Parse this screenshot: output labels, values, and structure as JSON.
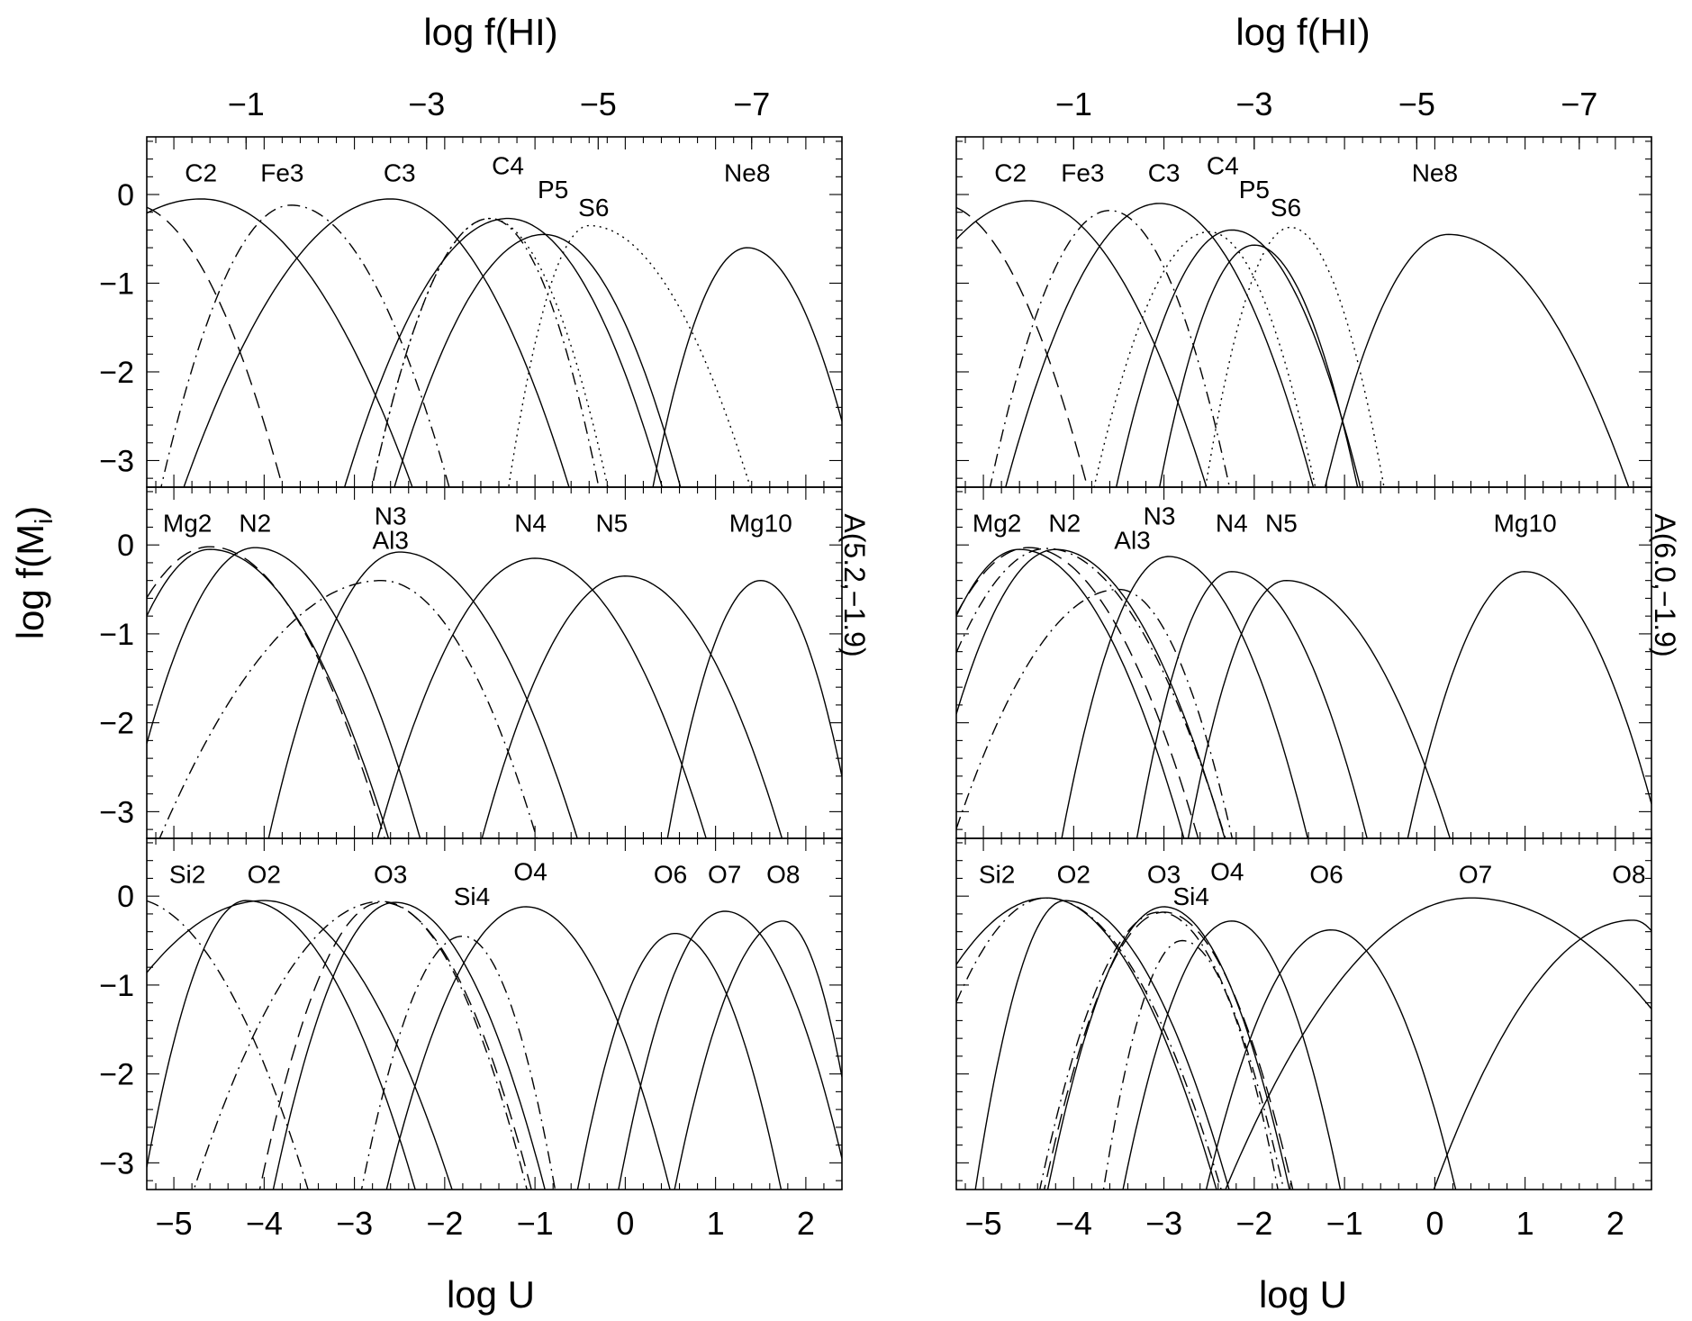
{
  "chart_data": [
    {
      "type": "line",
      "column": "left",
      "top_axis_label": "log f(HI)",
      "top_ticks": [
        "−1",
        "−3",
        "−5",
        "−7"
      ],
      "top_tick_logU": [
        -4.2,
        -2.2,
        -0.3,
        1.4
      ],
      "bottom_axis_label": "log U",
      "y_axis_label": "log f(M",
      "y_axis_label_sub": "i",
      "y_axis_label_end": ")",
      "right_label": "A(5.2,−1.9)",
      "xlim": [
        -5.3,
        2.4
      ],
      "ylim": [
        -3.3,
        0.65
      ],
      "x_ticks": [
        -5,
        -4,
        -3,
        -2,
        -1,
        0,
        1,
        2
      ],
      "x_tick_labels": [
        "−5",
        "−4",
        "−3",
        "−2",
        "−1",
        "0",
        "1",
        "2"
      ],
      "y_ticks": [
        0,
        -1,
        -2,
        -3
      ],
      "y_tick_labels": [
        "0",
        "−1",
        "−2",
        "−3"
      ],
      "panels": [
        {
          "labels": [
            {
              "text": "C2",
              "x": -4.7,
              "y": 0.25
            },
            {
              "text": "Fe3",
              "x": -3.8,
              "y": 0.25
            },
            {
              "text": "C3",
              "x": -2.5,
              "y": 0.25
            },
            {
              "text": "C4",
              "x": -1.3,
              "y": 0.33
            },
            {
              "text": "P5",
              "x": -0.8,
              "y": 0.06
            },
            {
              "text": "S6",
              "x": -0.35,
              "y": -0.14
            },
            {
              "text": "Ne8",
              "x": 1.35,
              "y": 0.25
            }
          ],
          "series": [
            {
              "name": "C2",
              "style": "solid",
              "peak_x": -4.7,
              "peak_y": -0.05,
              "w_left": 2.6,
              "w_right": 2.25
            },
            {
              "name": "Fe3",
              "style": "dashdot",
              "peak_x": -3.7,
              "peak_y": -0.12,
              "w_left": 1.4,
              "w_right": 1.7
            },
            {
              "name": "C3",
              "style": "solid",
              "peak_x": -2.6,
              "peak_y": -0.05,
              "w_left": 2.2,
              "w_right": 1.9
            },
            {
              "name": "C4",
              "style": "solid",
              "peak_x": -1.3,
              "peak_y": -0.27,
              "w_left": 1.8,
              "w_right": 1.7
            },
            {
              "name": "P5",
              "style": "solid",
              "peak_x": -0.9,
              "peak_y": -0.45,
              "w_left": 1.7,
              "w_right": 1.55
            },
            {
              "name": "S6",
              "style": "dotted",
              "peak_x": -0.4,
              "peak_y": -0.35,
              "w_left": 0.9,
              "w_right": 1.8
            },
            {
              "name": "Ne8",
              "style": "solid",
              "peak_x": 1.35,
              "peak_y": -0.6,
              "w_left": 1.1,
              "w_right": 1.3
            },
            {
              "name": "",
              "style": "dashdash",
              "peak_x": -5.5,
              "peak_y": -0.1,
              "w_left": 1.5,
              "w_right": 1.65
            },
            {
              "name": "",
              "style": "dotted",
              "peak_x": -1.5,
              "peak_y": -0.27,
              "w_left": 1.3,
              "w_right": 1.3
            },
            {
              "name": "",
              "style": "dashdot",
              "peak_x": -1.5,
              "peak_y": -0.27,
              "w_left": 1.3,
              "w_right": 1.2
            }
          ]
        },
        {
          "labels": [
            {
              "text": "Mg2",
              "x": -4.85,
              "y": 0.25
            },
            {
              "text": "N2",
              "x": -4.1,
              "y": 0.25
            },
            {
              "text": "N3",
              "x": -2.6,
              "y": 0.33
            },
            {
              "text": "Al3",
              "x": -2.6,
              "y": 0.06
            },
            {
              "text": "N4",
              "x": -1.05,
              "y": 0.25
            },
            {
              "text": "N5",
              "x": -0.15,
              "y": 0.25
            },
            {
              "text": "Mg10",
              "x": 1.5,
              "y": 0.25
            }
          ],
          "series": [
            {
              "name": "Mg2",
              "style": "solid",
              "peak_x": -4.6,
              "peak_y": -0.05,
              "w_left": 1.4,
              "w_right": 1.9
            },
            {
              "name": "N2",
              "style": "solid",
              "peak_x": -4.1,
              "peak_y": -0.03,
              "w_left": 1.4,
              "w_right": 1.75
            },
            {
              "name": "N3",
              "style": "solid",
              "peak_x": -2.5,
              "peak_y": -0.08,
              "w_left": 1.4,
              "w_right": 1.9
            },
            {
              "name": "Al3",
              "style": "dashdot",
              "peak_x": -2.7,
              "peak_y": -0.4,
              "w_left": 2.5,
              "w_right": 1.75
            },
            {
              "name": "N4",
              "style": "solid",
              "peak_x": -1.0,
              "peak_y": -0.15,
              "w_left": 1.7,
              "w_right": 1.85
            },
            {
              "name": "N5",
              "style": "solid",
              "peak_x": 0.0,
              "peak_y": -0.35,
              "w_left": 1.6,
              "w_right": 1.75
            },
            {
              "name": "Mg10",
              "style": "solid",
              "peak_x": 1.5,
              "peak_y": -0.4,
              "w_left": 1.05,
              "w_right": 1.05
            },
            {
              "name": "",
              "style": "dashdash",
              "peak_x": -4.6,
              "peak_y": -0.02,
              "w_left": 1.6,
              "w_right": 1.85
            }
          ]
        },
        {
          "labels": [
            {
              "text": "Si2",
              "x": -4.85,
              "y": 0.25
            },
            {
              "text": "O2",
              "x": -4.0,
              "y": 0.25
            },
            {
              "text": "O3",
              "x": -2.6,
              "y": 0.25
            },
            {
              "text": "Si4",
              "x": -1.7,
              "y": 0.0
            },
            {
              "text": "O4",
              "x": -1.05,
              "y": 0.28
            },
            {
              "text": "O6",
              "x": 0.5,
              "y": 0.25
            },
            {
              "text": "O7",
              "x": 1.1,
              "y": 0.25
            },
            {
              "text": "O8",
              "x": 1.75,
              "y": 0.25
            }
          ],
          "series": [
            {
              "name": "Si2",
              "style": "solid",
              "peak_x": -4.0,
              "peak_y": -0.05,
              "w_left": 2.5,
              "w_right": 2.0
            },
            {
              "name": "O2",
              "style": "solid",
              "peak_x": -4.2,
              "peak_y": -0.05,
              "w_left": 1.1,
              "w_right": 1.8
            },
            {
              "name": "O3",
              "style": "solid",
              "peak_x": -2.55,
              "peak_y": -0.07,
              "w_left": 1.3,
              "w_right": 1.6
            },
            {
              "name": "Si4",
              "style": "dashdot",
              "peak_x": -1.8,
              "peak_y": -0.45,
              "w_left": 1.15,
              "w_right": 1.05
            },
            {
              "name": "O4",
              "style": "solid",
              "peak_x": -1.1,
              "peak_y": -0.12,
              "w_left": 1.5,
              "w_right": 1.55
            },
            {
              "name": "O6",
              "style": "solid",
              "peak_x": 0.55,
              "peak_y": -0.42,
              "w_left": 1.1,
              "w_right": 1.2
            },
            {
              "name": "O7",
              "style": "solid",
              "peak_x": 1.1,
              "peak_y": -0.17,
              "w_left": 1.15,
              "w_right": 1.35
            },
            {
              "name": "O8",
              "style": "solid",
              "peak_x": 1.75,
              "peak_y": -0.28,
              "w_left": 1.2,
              "w_right": 0.85
            },
            {
              "name": "",
              "style": "dashdot",
              "peak_x": -5.5,
              "peak_y": -0.02,
              "w_left": 1.6,
              "w_right": 1.9
            },
            {
              "name": "",
              "style": "dashdot",
              "peak_x": -2.7,
              "peak_y": -0.06,
              "w_left": 2.0,
              "w_right": 1.55
            },
            {
              "name": "",
              "style": "dashdash",
              "peak_x": -2.7,
              "peak_y": -0.07,
              "w_left": 1.3,
              "w_right": 1.6
            }
          ]
        }
      ]
    },
    {
      "type": "line",
      "column": "right",
      "top_axis_label": "log f(HI)",
      "top_ticks": [
        "−1",
        "−3",
        "−5",
        "−7"
      ],
      "top_tick_logU": [
        -4.0,
        -2.0,
        -0.2,
        1.6
      ],
      "bottom_axis_label": "log U",
      "right_label": "A(6.0,−1.9)",
      "xlim": [
        -5.3,
        2.4
      ],
      "ylim": [
        -3.3,
        0.65
      ],
      "x_ticks": [
        -5,
        -4,
        -3,
        -2,
        -1,
        0,
        1,
        2
      ],
      "x_tick_labels": [
        "−5",
        "−4",
        "−3",
        "−2",
        "−1",
        "0",
        "1",
        "2"
      ],
      "y_ticks": [
        0,
        -1,
        -2,
        -3
      ],
      "panels": [
        {
          "labels": [
            {
              "text": "C2",
              "x": -4.7,
              "y": 0.25
            },
            {
              "text": "Fe3",
              "x": -3.9,
              "y": 0.25
            },
            {
              "text": "C3",
              "x": -3.0,
              "y": 0.25
            },
            {
              "text": "C4",
              "x": -2.35,
              "y": 0.33
            },
            {
              "text": "P5",
              "x": -2.0,
              "y": 0.06
            },
            {
              "text": "S6",
              "x": -1.65,
              "y": -0.14
            },
            {
              "text": "Ne8",
              "x": 0.0,
              "y": 0.25
            }
          ],
          "series": [
            {
              "name": "C2",
              "style": "solid",
              "peak_x": -4.5,
              "peak_y": -0.07,
              "w_left": 2.1,
              "w_right": 1.9
            },
            {
              "name": "Fe3",
              "style": "dashdot",
              "peak_x": -3.6,
              "peak_y": -0.18,
              "w_left": 1.3,
              "w_right": 1.3
            },
            {
              "name": "C3",
              "style": "solid",
              "peak_x": -3.05,
              "peak_y": -0.1,
              "w_left": 1.65,
              "w_right": 1.65
            },
            {
              "name": "C4",
              "style": "solid",
              "peak_x": -2.25,
              "peak_y": -0.4,
              "w_left": 1.3,
              "w_right": 1.45
            },
            {
              "name": "P5",
              "style": "solid",
              "peak_x": -2.0,
              "peak_y": -0.57,
              "w_left": 1.1,
              "w_right": 1.2
            },
            {
              "name": "S6",
              "style": "dotted",
              "peak_x": -1.6,
              "peak_y": -0.37,
              "w_left": 0.95,
              "w_right": 1.05
            },
            {
              "name": "Ne8",
              "style": "solid",
              "peak_x": 0.15,
              "peak_y": -0.45,
              "w_left": 1.4,
              "w_right": 2.05
            },
            {
              "name": "",
              "style": "dashdash",
              "peak_x": -5.5,
              "peak_y": -0.1,
              "w_left": 1.5,
              "w_right": 1.6
            },
            {
              "name": "",
              "style": "dotted",
              "peak_x": -2.5,
              "peak_y": -0.42,
              "w_left": 1.3,
              "w_right": 1.2
            }
          ]
        },
        {
          "labels": [
            {
              "text": "Mg2",
              "x": -4.85,
              "y": 0.25
            },
            {
              "text": "N2",
              "x": -4.1,
              "y": 0.25
            },
            {
              "text": "N3",
              "x": -3.05,
              "y": 0.33
            },
            {
              "text": "Al3",
              "x": -3.35,
              "y": 0.06
            },
            {
              "text": "N4",
              "x": -2.25,
              "y": 0.25
            },
            {
              "text": "N5",
              "x": -1.7,
              "y": 0.25
            },
            {
              "text": "Mg10",
              "x": 1.0,
              "y": 0.25
            }
          ],
          "series": [
            {
              "name": "Mg2",
              "style": "solid",
              "peak_x": -4.6,
              "peak_y": -0.05,
              "w_left": 1.4,
              "w_right": 1.75
            },
            {
              "name": "N2",
              "style": "solid",
              "peak_x": -4.2,
              "peak_y": -0.05,
              "w_left": 1.4,
              "w_right": 1.8
            },
            {
              "name": "N3",
              "style": "solid",
              "peak_x": -2.95,
              "peak_y": -0.13,
              "w_left": 1.15,
              "w_right": 1.5
            },
            {
              "name": "Al3",
              "style": "dashdot",
              "peak_x": -3.5,
              "peak_y": -0.5,
              "w_left": 1.9,
              "w_right": 1.3
            },
            {
              "name": "N4",
              "style": "solid",
              "peak_x": -2.25,
              "peak_y": -0.3,
              "w_left": 1.05,
              "w_right": 1.5
            },
            {
              "name": "N5",
              "style": "solid",
              "peak_x": -1.65,
              "peak_y": -0.4,
              "w_left": 1.1,
              "w_right": 1.85
            },
            {
              "name": "Mg10",
              "style": "solid",
              "peak_x": 1.0,
              "peak_y": -0.3,
              "w_left": 1.3,
              "w_right": 1.5
            },
            {
              "name": "",
              "style": "dashdash",
              "peak_x": -4.5,
              "peak_y": -0.03,
              "w_left": 1.6,
              "w_right": 1.8
            },
            {
              "name": "",
              "style": "dashdot",
              "peak_x": -4.3,
              "peak_y": -0.04,
              "w_left": 1.6,
              "w_right": 1.9
            }
          ]
        },
        {
          "labels": [
            {
              "text": "Si2",
              "x": -4.85,
              "y": 0.25
            },
            {
              "text": "O2",
              "x": -4.0,
              "y": 0.25
            },
            {
              "text": "O3",
              "x": -3.0,
              "y": 0.25
            },
            {
              "text": "Si4",
              "x": -2.7,
              "y": 0.0
            },
            {
              "text": "O4",
              "x": -2.3,
              "y": 0.28
            },
            {
              "text": "O6",
              "x": -1.2,
              "y": 0.25
            },
            {
              "text": "O7",
              "x": 0.45,
              "y": 0.25
            },
            {
              "text": "O8",
              "x": 2.15,
              "y": 0.25
            }
          ],
          "series": [
            {
              "name": "Si2",
              "style": "solid",
              "peak_x": -4.3,
              "peak_y": -0.02,
              "w_left": 2.0,
              "w_right": 1.8
            },
            {
              "name": "O2",
              "style": "solid",
              "peak_x": -4.1,
              "peak_y": -0.05,
              "w_left": 0.95,
              "w_right": 1.75
            },
            {
              "name": "O3",
              "style": "solid",
              "peak_x": -3.0,
              "peak_y": -0.12,
              "w_left": 1.25,
              "w_right": 1.35
            },
            {
              "name": "Si4",
              "style": "dashdot",
              "peak_x": -2.8,
              "peak_y": -0.5,
              "w_left": 0.9,
              "w_right": 1.1
            },
            {
              "name": "O4",
              "style": "solid",
              "peak_x": -2.25,
              "peak_y": -0.28,
              "w_left": 1.2,
              "w_right": 1.2
            },
            {
              "name": "O6",
              "style": "solid",
              "peak_x": -1.15,
              "peak_y": -0.38,
              "w_left": 1.4,
              "w_right": 1.4
            },
            {
              "name": "O7",
              "style": "solid",
              "peak_x": 0.4,
              "peak_y": -0.02,
              "w_left": 2.6,
              "w_right": 3.1
            },
            {
              "name": "O8",
              "style": "solid",
              "peak_x": 2.2,
              "peak_y": -0.27,
              "w_left": 2.2,
              "w_right": 1.0
            },
            {
              "name": "",
              "style": "dashdot",
              "peak_x": -4.3,
              "peak_y": -0.02,
              "w_left": 1.6,
              "w_right": 1.85
            },
            {
              "name": "",
              "style": "dashdot",
              "peak_x": -3.05,
              "peak_y": -0.18,
              "w_left": 1.3,
              "w_right": 1.35
            },
            {
              "name": "",
              "style": "dashdash",
              "peak_x": -3.0,
              "peak_y": -0.18,
              "w_left": 1.3,
              "w_right": 1.4
            }
          ]
        }
      ]
    }
  ]
}
